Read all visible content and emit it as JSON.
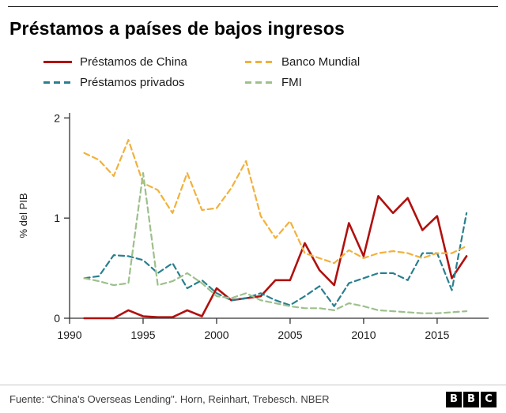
{
  "header": {
    "title": "Préstamos a países de bajos ingresos"
  },
  "legend": [
    {
      "label": "Préstamos de China",
      "color": "#b0100e",
      "dashed": false
    },
    {
      "label": "Préstamos privados",
      "color": "#2a7f8f",
      "dashed": true
    },
    {
      "label": "Banco Mundial",
      "color": "#f1b13c",
      "dashed": true
    },
    {
      "label": "FMI",
      "color": "#9dc08b",
      "dashed": true
    }
  ],
  "chart_data": {
    "type": "line",
    "title": "Préstamos a países de bajos ingresos",
    "xlabel": "",
    "ylabel": "% del PIB",
    "xlim": [
      1990,
      2018.5
    ],
    "ylim": [
      0,
      2.05
    ],
    "xticks": [
      1990,
      1995,
      2000,
      2005,
      2010,
      2015
    ],
    "yticks": [
      0,
      1,
      2
    ],
    "grid": false,
    "legend_position": "top",
    "x": [
      1991,
      1992,
      1993,
      1994,
      1995,
      1996,
      1997,
      1998,
      1999,
      2000,
      2001,
      2002,
      2003,
      2004,
      2005,
      2006,
      2007,
      2008,
      2009,
      2010,
      2011,
      2012,
      2013,
      2014,
      2015,
      2016,
      2017
    ],
    "series": [
      {
        "id": "china",
        "name": "Préstamos de China",
        "color": "#b0100e",
        "dashed": false,
        "values": [
          0,
          0,
          0,
          0.08,
          0.02,
          0.01,
          0.01,
          0.08,
          0.02,
          0.3,
          0.18,
          0.2,
          0.22,
          0.38,
          0.38,
          0.75,
          0.48,
          0.33,
          0.95,
          0.62,
          1.22,
          1.05,
          1.2,
          0.88,
          1.02,
          0.4,
          0.62
        ]
      },
      {
        "id": "privados",
        "name": "Préstamos privados",
        "color": "#2a7f8f",
        "dashed": true,
        "values": [
          0.4,
          0.42,
          0.63,
          0.62,
          0.58,
          0.45,
          0.55,
          0.3,
          0.38,
          0.25,
          0.18,
          0.2,
          0.25,
          0.18,
          0.13,
          0.22,
          0.32,
          0.12,
          0.35,
          0.4,
          0.45,
          0.45,
          0.38,
          0.65,
          0.65,
          0.28,
          1.05
        ]
      },
      {
        "id": "banco-mundial",
        "name": "Banco Mundial",
        "color": "#f1b13c",
        "dashed": true,
        "values": [
          1.65,
          1.58,
          1.42,
          1.78,
          1.35,
          1.28,
          1.05,
          1.45,
          1.08,
          1.1,
          1.3,
          1.57,
          1.02,
          0.8,
          0.97,
          0.65,
          0.6,
          0.55,
          0.68,
          0.6,
          0.65,
          0.67,
          0.65,
          0.6,
          0.65,
          0.65,
          0.72
        ]
      },
      {
        "id": "fmi",
        "name": "FMI",
        "color": "#9dc08b",
        "dashed": true,
        "values": [
          0.4,
          0.37,
          0.33,
          0.35,
          1.45,
          0.33,
          0.37,
          0.45,
          0.35,
          0.22,
          0.2,
          0.25,
          0.18,
          0.15,
          0.12,
          0.1,
          0.1,
          0.08,
          0.15,
          0.12,
          0.08,
          0.07,
          0.06,
          0.05,
          0.05,
          0.06,
          0.07
        ]
      }
    ]
  },
  "footer": {
    "source": "Fuente: “China's Overseas Lending\". Horn, Reinhart, Trebesch. NBER",
    "logo_letters": [
      "B",
      "B",
      "C"
    ]
  }
}
